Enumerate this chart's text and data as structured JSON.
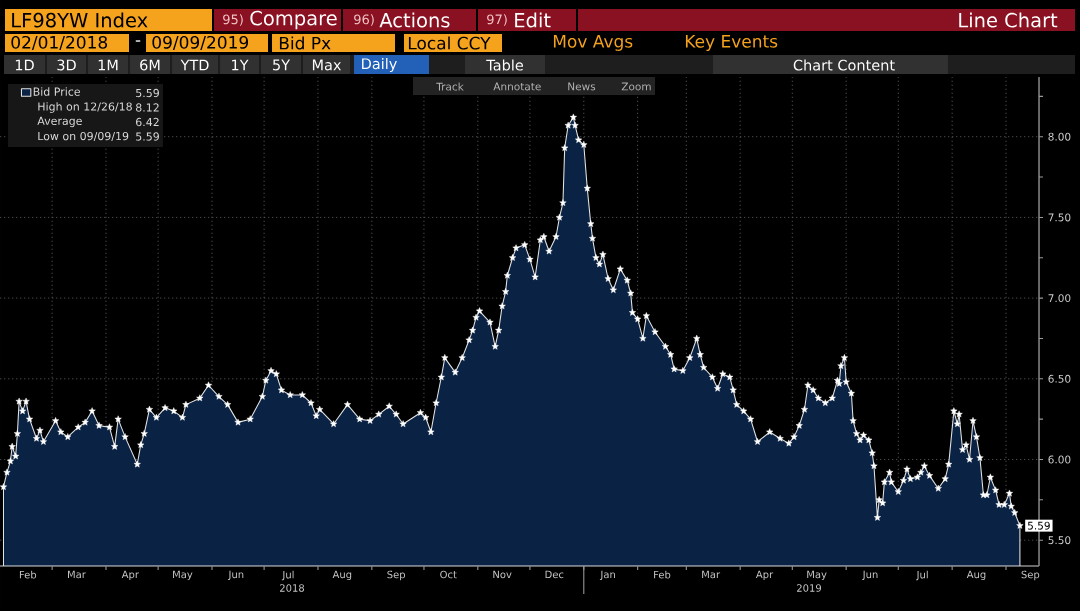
{
  "chart_data": {
    "type": "area",
    "title": "LF98YW Index",
    "x": [
      "2018-02-01",
      "2018-02-03",
      "2018-02-05",
      "2018-02-06",
      "2018-02-08",
      "2018-02-09",
      "2018-02-10",
      "2018-02-12",
      "2018-02-14",
      "2018-02-16",
      "2018-02-20",
      "2018-02-22",
      "2018-02-24",
      "2018-03-03",
      "2018-03-06",
      "2018-03-10",
      "2018-03-16",
      "2018-03-20",
      "2018-03-24",
      "2018-03-28",
      "2018-04-03",
      "2018-04-06",
      "2018-04-08",
      "2018-04-12",
      "2018-04-19",
      "2018-04-21",
      "2018-04-23",
      "2018-04-26",
      "2018-04-30",
      "2018-05-05",
      "2018-05-10",
      "2018-05-15",
      "2018-05-17",
      "2018-05-25",
      "2018-05-30",
      "2018-06-05",
      "2018-06-10",
      "2018-06-16",
      "2018-06-23",
      "2018-06-30",
      "2018-07-02",
      "2018-07-05",
      "2018-07-08",
      "2018-07-11",
      "2018-07-16",
      "2018-07-23",
      "2018-07-28",
      "2018-07-31",
      "2018-08-02",
      "2018-08-10",
      "2018-08-18",
      "2018-08-25",
      "2018-08-31",
      "2018-09-05",
      "2018-09-11",
      "2018-09-15",
      "2018-09-19",
      "2018-09-29",
      "2018-10-02",
      "2018-10-05",
      "2018-10-08",
      "2018-10-11",
      "2018-10-13",
      "2018-10-19",
      "2018-10-23",
      "2018-10-27",
      "2018-10-29",
      "2018-10-31",
      "2018-11-02",
      "2018-11-08",
      "2018-11-11",
      "2018-11-13",
      "2018-11-15",
      "2018-11-17",
      "2018-11-18",
      "2018-11-21",
      "2018-11-23",
      "2018-11-28",
      "2018-12-01",
      "2018-12-04",
      "2018-12-07",
      "2018-12-09",
      "2018-12-12",
      "2018-12-16",
      "2018-12-18",
      "2018-12-20",
      "2018-12-21",
      "2018-12-23",
      "2018-12-26",
      "2018-12-27",
      "2018-12-29",
      "2019-01-01",
      "2019-01-03",
      "2019-01-05",
      "2019-01-06",
      "2019-01-08",
      "2019-01-10",
      "2019-01-12",
      "2019-01-15",
      "2019-01-18",
      "2019-01-22",
      "2019-01-26",
      "2019-01-28",
      "2019-01-29",
      "2019-02-01",
      "2019-02-04",
      "2019-02-06",
      "2019-02-11",
      "2019-02-17",
      "2019-02-20",
      "2019-02-22",
      "2019-02-27",
      "2019-03-03",
      "2019-03-07",
      "2019-03-09",
      "2019-03-11",
      "2019-03-16",
      "2019-03-19",
      "2019-03-22",
      "2019-03-26",
      "2019-03-28",
      "2019-03-30",
      "2019-04-03",
      "2019-04-07",
      "2019-04-11",
      "2019-04-18",
      "2019-04-24",
      "2019-04-29",
      "2019-05-02",
      "2019-05-05",
      "2019-05-08",
      "2019-05-10",
      "2019-05-13",
      "2019-05-16",
      "2019-05-20",
      "2019-05-24",
      "2019-05-27",
      "2019-05-28",
      "2019-05-29",
      "2019-05-31",
      "2019-06-01",
      "2019-06-04",
      "2019-06-05",
      "2019-06-07",
      "2019-06-09",
      "2019-06-11",
      "2019-06-14",
      "2019-06-16",
      "2019-06-17",
      "2019-06-19",
      "2019-06-20",
      "2019-06-22",
      "2019-06-23",
      "2019-06-26",
      "2019-06-27",
      "2019-07-01",
      "2019-07-04",
      "2019-07-06",
      "2019-07-08",
      "2019-07-12",
      "2019-07-14",
      "2019-07-16",
      "2019-07-19",
      "2019-07-24",
      "2019-07-28",
      "2019-07-30",
      "2019-08-02",
      "2019-08-04",
      "2019-08-05",
      "2019-08-07",
      "2019-08-09",
      "2019-08-11",
      "2019-08-13",
      "2019-08-15",
      "2019-08-17",
      "2019-08-19",
      "2019-08-21",
      "2019-08-23",
      "2019-08-26",
      "2019-08-28",
      "2019-08-31",
      "2019-09-03",
      "2019-09-04",
      "2019-09-06",
      "2019-09-09"
    ],
    "series": [
      {
        "name": "Bid Price",
        "color": "#0a2244",
        "values": [
          5.83,
          5.92,
          5.99,
          6.08,
          6.02,
          6.16,
          6.36,
          6.3,
          6.36,
          6.25,
          6.13,
          6.18,
          6.11,
          6.24,
          6.17,
          6.14,
          6.2,
          6.23,
          6.3,
          6.21,
          6.2,
          6.08,
          6.25,
          6.14,
          5.97,
          6.09,
          6.16,
          6.31,
          6.26,
          6.32,
          6.3,
          6.26,
          6.34,
          6.38,
          6.46,
          6.39,
          6.34,
          6.23,
          6.25,
          6.39,
          6.49,
          6.55,
          6.53,
          6.43,
          6.4,
          6.4,
          6.35,
          6.27,
          6.31,
          6.22,
          6.34,
          6.25,
          6.24,
          6.28,
          6.33,
          6.28,
          6.22,
          6.29,
          6.26,
          6.17,
          6.35,
          6.51,
          6.63,
          6.54,
          6.63,
          6.74,
          6.8,
          6.88,
          6.92,
          6.85,
          6.7,
          6.8,
          6.95,
          7.04,
          7.14,
          7.25,
          7.31,
          7.33,
          7.24,
          7.13,
          7.36,
          7.38,
          7.29,
          7.38,
          7.5,
          7.59,
          7.93,
          8.07,
          8.12,
          8.07,
          7.98,
          7.95,
          7.68,
          7.46,
          7.37,
          7.25,
          7.21,
          7.27,
          7.12,
          7.05,
          7.18,
          7.11,
          7.03,
          6.91,
          6.87,
          6.75,
          6.89,
          6.79,
          6.7,
          6.65,
          6.56,
          6.55,
          6.63,
          6.75,
          6.65,
          6.57,
          6.51,
          6.44,
          6.53,
          6.51,
          6.43,
          6.34,
          6.3,
          6.25,
          6.11,
          6.17,
          6.13,
          6.1,
          6.14,
          6.21,
          6.31,
          6.46,
          6.43,
          6.38,
          6.35,
          6.38,
          6.49,
          6.47,
          6.58,
          6.63,
          6.48,
          6.41,
          6.24,
          6.16,
          6.12,
          6.15,
          6.12,
          6.04,
          5.96,
          5.64,
          5.75,
          5.73,
          5.86,
          5.92,
          5.86,
          5.8,
          5.87,
          5.94,
          5.88,
          5.89,
          5.92,
          5.96,
          5.9,
          5.82,
          5.88,
          5.97,
          6.3,
          6.22,
          6.28,
          6.06,
          6.09,
          6.0,
          6.24,
          6.14,
          6.01,
          5.78,
          5.78,
          5.89,
          5.81,
          5.72,
          5.72,
          5.79,
          5.71,
          5.67,
          5.59
        ],
        "value_labels": [
          null,
          null,
          null,
          null,
          null,
          null,
          null,
          null,
          null,
          null,
          null,
          null,
          null,
          null,
          null,
          null,
          null,
          null,
          null,
          null,
          null,
          null,
          null,
          null,
          null,
          null,
          null,
          null,
          null,
          null,
          null,
          null,
          null,
          null,
          null,
          null,
          null,
          null,
          null,
          null,
          null,
          null,
          null,
          null,
          null,
          null,
          null,
          null,
          null,
          null,
          null,
          null,
          null,
          null,
          null,
          null,
          null,
          null,
          null,
          null,
          null,
          null,
          null,
          null,
          null,
          null,
          null,
          null,
          null,
          null,
          null,
          null,
          null,
          null,
          null,
          null,
          null,
          null,
          null,
          null,
          null,
          null,
          null,
          null,
          null,
          null,
          null,
          null,
          null,
          null,
          null,
          null,
          null,
          null,
          null,
          null,
          null,
          null,
          null,
          null,
          null,
          null,
          null,
          null,
          null,
          null,
          null,
          null,
          null,
          null,
          null,
          null,
          null,
          null,
          null,
          null,
          null,
          null,
          null,
          null,
          null,
          null,
          null,
          null,
          null,
          null,
          null,
          null,
          null,
          null,
          null,
          null,
          null,
          null,
          null,
          null,
          null,
          null,
          null,
          null,
          null,
          null,
          null,
          null,
          null,
          null,
          null,
          null,
          null,
          null,
          null,
          null,
          null,
          null,
          null,
          null,
          null,
          null,
          null,
          null,
          null,
          null,
          null,
          null,
          null,
          null,
          null,
          null,
          null,
          null,
          null,
          null,
          null,
          null,
          null,
          null,
          null,
          null,
          null,
          null,
          null,
          null,
          null,
          null,
          "5.59"
        ]
      }
    ],
    "xlim": [
      "2018-01-30",
      "2019-09-20"
    ],
    "xticks": [
      {
        "value": "2018-02-15",
        "label": "Feb"
      },
      {
        "value": "2018-03-01",
        "label": null
      },
      {
        "value": "2018-03-15",
        "label": "Mar"
      },
      {
        "value": "2018-04-01",
        "label": null
      },
      {
        "value": "2018-04-15",
        "label": "Apr"
      },
      {
        "value": "2018-05-01",
        "label": null
      },
      {
        "value": "2018-05-15",
        "label": "May"
      },
      {
        "value": "2018-06-01",
        "label": null
      },
      {
        "value": "2018-06-15",
        "label": "Jun"
      },
      {
        "value": "2018-07-01",
        "label": null
      },
      {
        "value": "2018-07-15",
        "label": "Jul"
      },
      {
        "value": "2018-08-01",
        "label": null
      },
      {
        "value": "2018-08-15",
        "label": "Aug"
      },
      {
        "value": "2018-09-01",
        "label": null
      },
      {
        "value": "2018-09-15",
        "label": "Sep"
      },
      {
        "value": "2018-10-01",
        "label": null
      },
      {
        "value": "2018-10-15",
        "label": "Oct"
      },
      {
        "value": "2018-11-01",
        "label": null
      },
      {
        "value": "2018-11-15",
        "label": "Nov"
      },
      {
        "value": "2018-12-01",
        "label": null
      },
      {
        "value": "2018-12-15",
        "label": "Dec"
      },
      {
        "value": "2019-01-01",
        "label": null
      },
      {
        "value": "2019-01-15",
        "label": "Jan"
      },
      {
        "value": "2019-02-01",
        "label": null
      },
      {
        "value": "2019-02-15",
        "label": "Feb"
      },
      {
        "value": "2019-03-01",
        "label": null
      },
      {
        "value": "2019-03-15",
        "label": "Mar"
      },
      {
        "value": "2019-04-01",
        "label": null
      },
      {
        "value": "2019-04-15",
        "label": "Apr"
      },
      {
        "value": "2019-05-01",
        "label": null
      },
      {
        "value": "2019-05-15",
        "label": "May"
      },
      {
        "value": "2019-06-01",
        "label": null
      },
      {
        "value": "2019-06-15",
        "label": "Jun"
      },
      {
        "value": "2019-07-01",
        "label": null
      },
      {
        "value": "2019-07-15",
        "label": "Jul"
      },
      {
        "value": "2019-08-01",
        "label": null
      },
      {
        "value": "2019-08-15",
        "label": "Aug"
      },
      {
        "value": "2019-09-01",
        "label": null
      },
      {
        "value": "2019-09-15",
        "label": "Sep"
      }
    ],
    "ylim": [
      5.34,
      8.37
    ],
    "yticks": [
      {
        "value": 5.5,
        "label": "5.50"
      },
      {
        "value": 5.75,
        "label": null
      },
      {
        "value": 6.0,
        "label": "6.00"
      },
      {
        "value": 6.25,
        "label": null
      },
      {
        "value": 6.5,
        "label": "6.50"
      },
      {
        "value": 6.75,
        "label": null
      },
      {
        "value": 7.0,
        "label": "7.00"
      },
      {
        "value": 7.25,
        "label": null
      },
      {
        "value": 7.5,
        "label": "7.50"
      },
      {
        "value": 7.75,
        "label": null
      },
      {
        "value": 8.0,
        "label": "8.00"
      },
      {
        "value": 8.25,
        "label": null
      }
    ],
    "grid": true,
    "legend": "top left",
    "marker": "star",
    "annotations": [
      "95)",
      "Compare",
      "96)",
      "Actions",
      "97)",
      "Edit",
      "Line Chart",
      "02/01/2018",
      "-",
      "09/09/2019",
      "Bid Px",
      "Local CCY",
      "Mov Avgs",
      "Key Events",
      "1D",
      "3D",
      "1M",
      "6M",
      "YTD",
      "1Y",
      "5Y",
      "Max",
      "Daily",
      "Table",
      "Chart Content",
      "Track",
      "Annotate",
      "News",
      "Zoom",
      "5.59",
      "High on 12/26/18",
      "8.12",
      "Average",
      "6.42",
      "Low on 09/09/19",
      "5.59",
      "2018",
      "2019"
    ]
  }
}
